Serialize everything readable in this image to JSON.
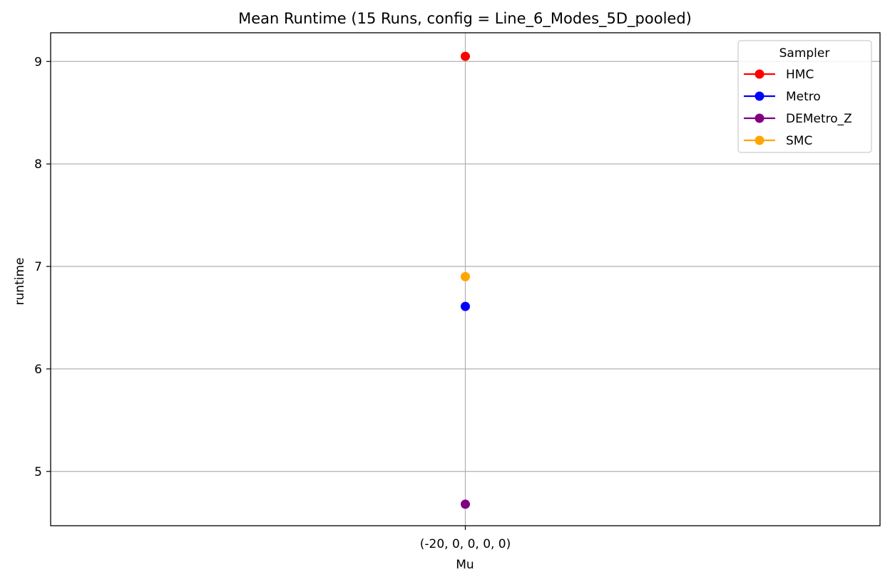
{
  "chart_data": {
    "type": "scatter",
    "title": "Mean Runtime (15 Runs, config = Line_6_Modes_5D_pooled)",
    "xlabel": "Mu",
    "ylabel": "runtime",
    "categories": [
      "(-20, 0, 0, 0, 0)"
    ],
    "y_ticks": [
      5,
      6,
      7,
      8,
      9
    ],
    "ylim": [
      4.47,
      9.28
    ],
    "grid": true,
    "legend": {
      "title": "Sampler",
      "placement": "top-right"
    },
    "series": [
      {
        "name": "HMC",
        "color": "#ff0000",
        "values": [
          9.05
        ]
      },
      {
        "name": "Metro",
        "color": "#0000ff",
        "values": [
          6.61
        ]
      },
      {
        "name": "DEMetro_Z",
        "color": "#800080",
        "values": [
          4.68
        ]
      },
      {
        "name": "SMC",
        "color": "#ffa500",
        "values": [
          6.9
        ]
      }
    ]
  }
}
